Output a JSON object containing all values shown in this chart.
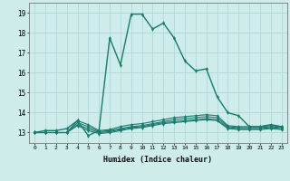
{
  "xlabel": "Humidex (Indice chaleur)",
  "background_color": "#cdecea",
  "grid_color": "#b0d8d5",
  "line_color": "#1a7a6e",
  "xlim": [
    -0.5,
    23.5
  ],
  "ylim": [
    12.5,
    19.5
  ],
  "yticks": [
    13,
    14,
    15,
    16,
    17,
    18,
    19
  ],
  "xticks": [
    0,
    1,
    2,
    3,
    4,
    5,
    6,
    7,
    8,
    9,
    10,
    11,
    12,
    13,
    14,
    15,
    16,
    17,
    18,
    19,
    20,
    21,
    22,
    23
  ],
  "series": [
    [
      13.0,
      13.1,
      13.1,
      13.2,
      13.6,
      12.85,
      13.1,
      17.75,
      16.4,
      18.95,
      18.95,
      18.2,
      18.5,
      17.75,
      16.6,
      16.1,
      16.2,
      14.8,
      14.0,
      13.85,
      13.3,
      13.3,
      13.4,
      13.3
    ],
    [
      13.0,
      13.0,
      13.0,
      13.0,
      13.6,
      13.4,
      13.1,
      13.15,
      13.3,
      13.4,
      13.45,
      13.55,
      13.65,
      13.75,
      13.8,
      13.85,
      13.9,
      13.85,
      13.35,
      13.3,
      13.3,
      13.3,
      13.35,
      13.3
    ],
    [
      13.0,
      13.0,
      13.0,
      13.0,
      13.5,
      13.3,
      13.05,
      13.1,
      13.2,
      13.3,
      13.35,
      13.45,
      13.55,
      13.65,
      13.7,
      13.75,
      13.8,
      13.75,
      13.3,
      13.25,
      13.25,
      13.25,
      13.3,
      13.25
    ],
    [
      13.0,
      13.0,
      13.0,
      13.0,
      13.4,
      13.2,
      13.0,
      13.05,
      13.15,
      13.25,
      13.3,
      13.4,
      13.5,
      13.55,
      13.6,
      13.65,
      13.7,
      13.65,
      13.25,
      13.2,
      13.2,
      13.2,
      13.25,
      13.2
    ],
    [
      13.0,
      13.0,
      13.0,
      13.0,
      13.35,
      13.1,
      12.95,
      13.0,
      13.1,
      13.2,
      13.25,
      13.35,
      13.45,
      13.5,
      13.55,
      13.6,
      13.65,
      13.6,
      13.2,
      13.15,
      13.15,
      13.15,
      13.2,
      13.15
    ]
  ]
}
